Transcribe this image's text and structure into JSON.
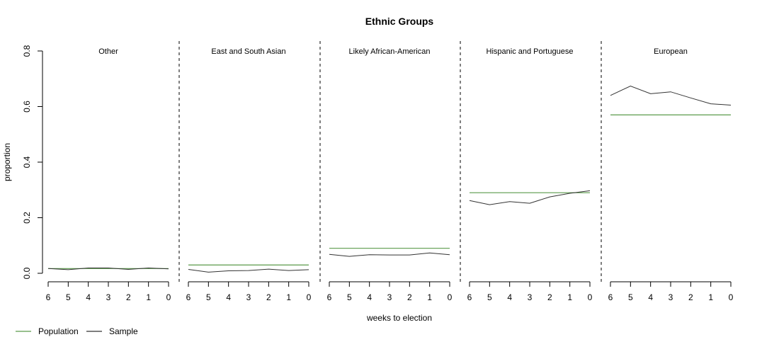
{
  "chart_data": {
    "type": "line",
    "title": "Ethnic Groups",
    "xlabel": "weeks to election",
    "ylabel": "proportion",
    "ylim": [
      0,
      0.8
    ],
    "yticks": [
      "0.0",
      "0.2",
      "0.4",
      "0.6",
      "0.8"
    ],
    "x": [
      6,
      5,
      4,
      3,
      2,
      1,
      0
    ],
    "xticks": [
      "6",
      "5",
      "4",
      "3",
      "2",
      "1",
      "0"
    ],
    "legend": {
      "placement": "bottom-left",
      "entries": [
        {
          "label": "Population",
          "color": "#5a9a4a"
        },
        {
          "label": "Sample",
          "color": "#333333"
        }
      ]
    },
    "panels": [
      {
        "name": "Other",
        "population": 0.017,
        "sample": [
          0.017,
          0.013,
          0.019,
          0.019,
          0.014,
          0.019,
          0.016
        ]
      },
      {
        "name": "East and South Asian",
        "population": 0.03,
        "sample": [
          0.014,
          0.004,
          0.009,
          0.01,
          0.015,
          0.01,
          0.013
        ]
      },
      {
        "name": "Likely African-American",
        "population": 0.09,
        "sample": [
          0.068,
          0.061,
          0.067,
          0.066,
          0.066,
          0.073,
          0.067
        ]
      },
      {
        "name": "Hispanic and Portuguese",
        "population": 0.29,
        "sample": [
          0.262,
          0.247,
          0.258,
          0.252,
          0.275,
          0.288,
          0.297
        ]
      },
      {
        "name": "European",
        "population": 0.57,
        "sample": [
          0.64,
          0.674,
          0.646,
          0.653,
          0.631,
          0.61,
          0.605
        ]
      }
    ]
  }
}
